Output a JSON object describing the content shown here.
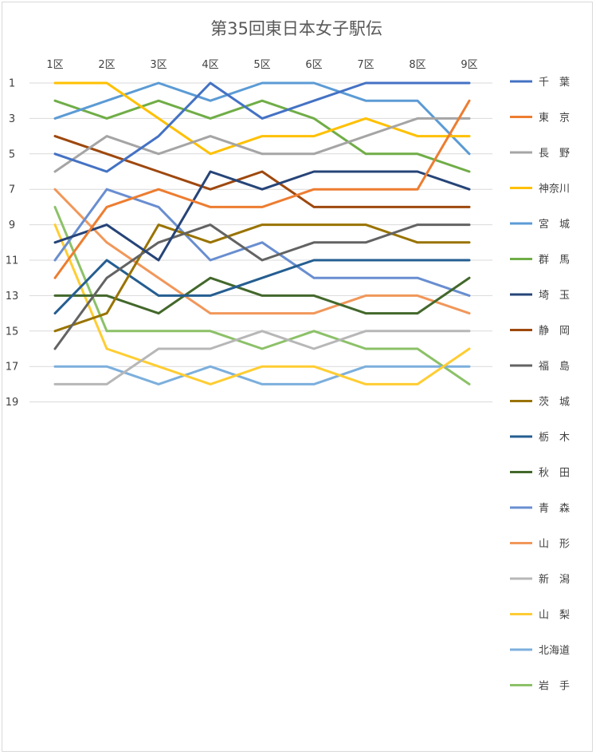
{
  "chart_data": {
    "type": "line",
    "title": "第35回東日本女子駅伝",
    "categories": [
      "1区",
      "2区",
      "3区",
      "4区",
      "5区",
      "6区",
      "7区",
      "8区",
      "9区"
    ],
    "y_axis": {
      "reversed": true,
      "ylim": [
        1,
        19
      ],
      "ticks": [
        "1",
        "3",
        "5",
        "7",
        "9",
        "11",
        "13",
        "15",
        "17",
        "19"
      ]
    },
    "grid": true,
    "legend_position": "right",
    "series": [
      {
        "name": "千　葉",
        "color": "#4472C4",
        "values": [
          5,
          6,
          4,
          1,
          3,
          2,
          1,
          1,
          1
        ]
      },
      {
        "name": "東　京",
        "color": "#ED7D31",
        "values": [
          12,
          8,
          7,
          8,
          8,
          7,
          7,
          7,
          2
        ]
      },
      {
        "name": "長　野",
        "color": "#A5A5A5",
        "values": [
          6,
          4,
          5,
          4,
          5,
          5,
          4,
          3,
          3
        ]
      },
      {
        "name": "神奈川",
        "color": "#FFC000",
        "values": [
          1,
          1,
          3,
          5,
          4,
          4,
          3,
          4,
          4
        ]
      },
      {
        "name": "宮　城",
        "color": "#5B9BD5",
        "values": [
          3,
          2,
          1,
          2,
          1,
          1,
          2,
          2,
          5
        ]
      },
      {
        "name": "群　馬",
        "color": "#70AD47",
        "values": [
          2,
          3,
          2,
          3,
          2,
          3,
          5,
          5,
          6
        ]
      },
      {
        "name": "埼　玉",
        "color": "#264478",
        "values": [
          10,
          9,
          11,
          6,
          7,
          6,
          6,
          6,
          7
        ]
      },
      {
        "name": "静　岡",
        "color": "#9E480E",
        "values": [
          4,
          5,
          6,
          7,
          6,
          8,
          8,
          8,
          8
        ]
      },
      {
        "name": "福　島",
        "color": "#636363",
        "values": [
          16,
          12,
          10,
          9,
          11,
          10,
          10,
          9,
          9
        ]
      },
      {
        "name": "茨　城",
        "color": "#997300",
        "values": [
          15,
          14,
          9,
          10,
          9,
          9,
          9,
          10,
          10
        ]
      },
      {
        "name": "栃　木",
        "color": "#255E91",
        "values": [
          14,
          11,
          13,
          13,
          12,
          11,
          11,
          11,
          11
        ]
      },
      {
        "name": "秋　田",
        "color": "#43682B",
        "values": [
          13,
          13,
          14,
          12,
          13,
          13,
          14,
          14,
          12
        ]
      },
      {
        "name": "青　森",
        "color": "#698ED0",
        "values": [
          11,
          7,
          8,
          11,
          10,
          12,
          12,
          12,
          13
        ]
      },
      {
        "name": "山　形",
        "color": "#F1975A",
        "values": [
          7,
          10,
          12,
          14,
          14,
          14,
          13,
          13,
          14
        ]
      },
      {
        "name": "新　潟",
        "color": "#B7B7B7",
        "values": [
          18,
          18,
          16,
          16,
          15,
          16,
          15,
          15,
          15
        ]
      },
      {
        "name": "山　梨",
        "color": "#FFCD33",
        "values": [
          9,
          16,
          17,
          18,
          17,
          17,
          18,
          18,
          16
        ]
      },
      {
        "name": "北海道",
        "color": "#7CAFDD",
        "values": [
          17,
          17,
          18,
          17,
          18,
          18,
          17,
          17,
          17
        ]
      },
      {
        "name": "岩　手",
        "color": "#8CC168",
        "values": [
          8,
          15,
          15,
          15,
          16,
          15,
          16,
          16,
          18
        ]
      }
    ]
  }
}
